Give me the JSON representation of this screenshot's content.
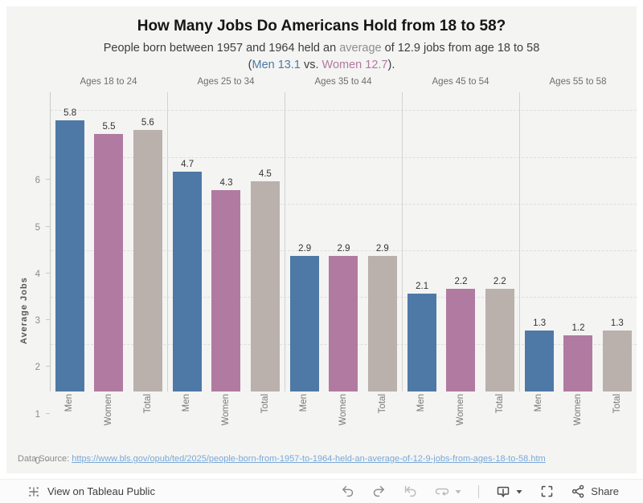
{
  "header": {
    "title": "How Many Jobs Do Americans Hold from 18 to 58?",
    "subtitle": {
      "line1_prefix": "People born between 1957 and 1964 held an ",
      "average_word": "average",
      "line1_suffix": " of 12.9 jobs from age 18 to 58",
      "line2_open": "(",
      "men_stat": "Men 13.1",
      "vs": " vs. ",
      "women_stat": "Women 12.7",
      "line2_close": ")."
    }
  },
  "chart_data": {
    "type": "bar",
    "title": "How Many Jobs Do Americans Hold from 18 to 58?",
    "xlabel": "",
    "ylabel": "Average Jobs",
    "ylim": [
      0,
      6.4
    ],
    "yticks": [
      0,
      1,
      2,
      3,
      4,
      5,
      6
    ],
    "grid": "dashed horizontal gridlines",
    "legend": "none (series named under each bar)",
    "categories": [
      "Ages 18 to 24",
      "Ages 25 to 34",
      "Ages 35 to 44",
      "Ages 45 to 54",
      "Ages 55 to 58"
    ],
    "series_names": [
      "Men",
      "Women",
      "Total"
    ],
    "series_colors": [
      "#4e79a7",
      "#b07aa1",
      "#bab0ac"
    ],
    "series": [
      {
        "name": "Men",
        "values": [
          5.8,
          4.7,
          2.9,
          2.1,
          1.3
        ]
      },
      {
        "name": "Women",
        "values": [
          5.5,
          4.3,
          2.9,
          2.2,
          1.2
        ]
      },
      {
        "name": "Total",
        "values": [
          5.6,
          4.5,
          2.9,
          2.2,
          1.3
        ]
      }
    ]
  },
  "footer": {
    "datasource_label": "Data Source: ",
    "datasource_link": "https://www.bls.gov/opub/ted/2025/people-born-from-1957-to-1964-held-an-average-of-12-9-jobs-from-ages-18-to-58.htm"
  },
  "toolbar": {
    "view_label": "View on Tableau Public",
    "share_label": "Share",
    "icons": [
      "tableau-logo-icon",
      "undo-icon",
      "redo-icon",
      "revert-icon",
      "refresh-icon",
      "caret-down-icon",
      "download-icon",
      "fullscreen-icon",
      "share-icon"
    ]
  },
  "colors": {
    "viz_background": "#f4f4f3",
    "page_background": "#ffffff",
    "men": "#4e79a7",
    "women": "#b07aa1",
    "total": "#bab0ac",
    "subtitle_accent_gray": "#8e8e8e",
    "link": "#79a8d7",
    "gridline": "#dedede",
    "pane_divider": "#d2d2d2"
  }
}
